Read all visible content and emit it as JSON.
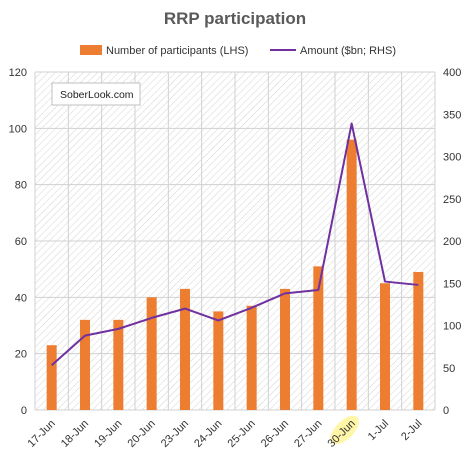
{
  "chart_data": {
    "type": "bar",
    "title": "RRP participation",
    "watermark": "SoberLook.com",
    "categories": [
      "17-Jun",
      "18-Jun",
      "19-Jun",
      "20-Jun",
      "23-Jun",
      "24-Jun",
      "25-Jun",
      "26-Jun",
      "27-Jun",
      "30-Jun",
      "1-Jul",
      "2-Jul"
    ],
    "highlighted_category": "30-Jun",
    "series": [
      {
        "name": "Number of participants (LHS)",
        "type": "bar",
        "axis": "left",
        "color": "#ED7D31",
        "values": [
          23,
          32,
          32,
          40,
          43,
          35,
          37,
          43,
          51,
          96,
          45,
          49
        ]
      },
      {
        "name": "Amount ($bn; RHS)",
        "type": "line",
        "axis": "right",
        "color": "#7030A0",
        "values": [
          53,
          88,
          96,
          109,
          120,
          106,
          121,
          138,
          142,
          339,
          152,
          148
        ]
      }
    ],
    "y_left": {
      "min": 0,
      "max": 120,
      "ticks": [
        0,
        20,
        40,
        60,
        80,
        100,
        120
      ]
    },
    "y_right": {
      "min": 0,
      "max": 400,
      "ticks": [
        0,
        50,
        100,
        150,
        200,
        250,
        300,
        350,
        400
      ]
    },
    "legend_position": "top",
    "grid": true
  }
}
